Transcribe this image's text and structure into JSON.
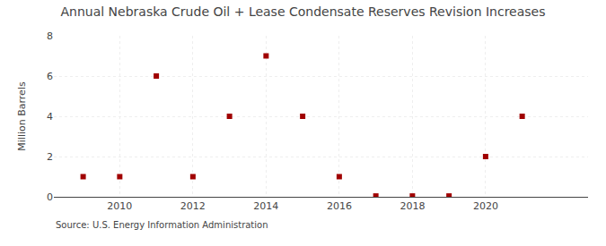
{
  "chart_data": {
    "type": "scatter",
    "title": "Annual Nebraska Crude Oil + Lease Condensate Reserves Revision Increases",
    "ylabel": "Million Barrels",
    "annotations": [
      "Source: U.S. Energy Information Administration"
    ],
    "x": [
      2009,
      2010,
      2011,
      2012,
      2013,
      2014,
      2015,
      2016,
      2017,
      2018,
      2019,
      2020,
      2021
    ],
    "values": [
      1.0,
      1.0,
      6.0,
      1.0,
      4.0,
      7.0,
      4.0,
      1.0,
      0.04,
      0.04,
      0.04,
      2.0,
      4.0
    ],
    "color": "#A00000",
    "marker": "square",
    "xlim": [
      2008.2,
      2022.8
    ],
    "xticks": [
      2010,
      2012,
      2014,
      2016,
      2018,
      2020
    ],
    "ylim": [
      0,
      8
    ],
    "yticks": [
      0,
      2,
      4,
      6,
      8
    ],
    "grid": true
  }
}
